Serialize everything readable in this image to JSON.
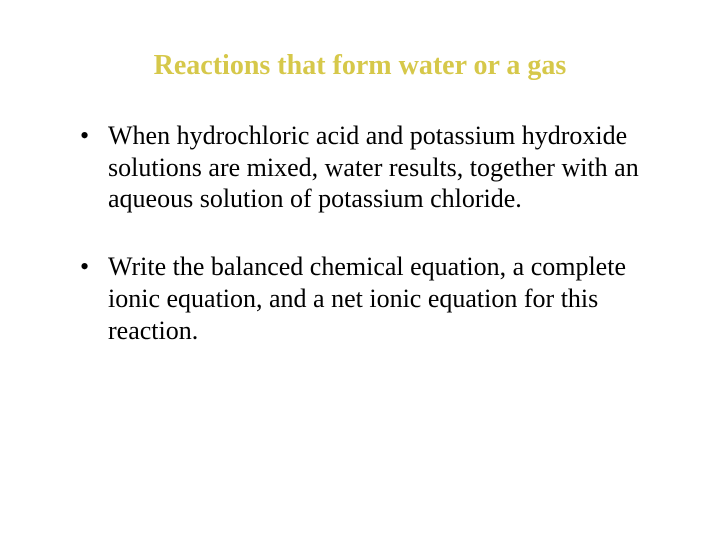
{
  "title": {
    "text": "Reactions that form water or a gas",
    "color": "#d6c84a",
    "fontsize": 28
  },
  "body": {
    "color": "#000000",
    "fontsize": 26,
    "items": [
      "When hydrochloric acid and potassium hydroxide solutions are mixed, water results, together with an aqueous solution of potassium chloride.",
      "Write the balanced chemical equation, a complete ionic equation, and a net ionic equation for this reaction."
    ]
  }
}
